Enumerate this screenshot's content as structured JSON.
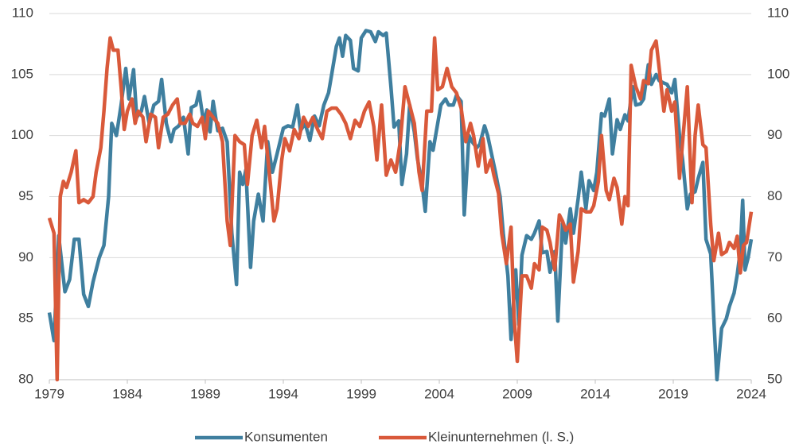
{
  "chart_data": {
    "type": "line",
    "xlim": [
      1979,
      2024
    ],
    "xticks": [
      1979,
      1984,
      1989,
      1994,
      1999,
      2004,
      2009,
      2014,
      2019,
      2024
    ],
    "ylim": [
      80,
      110
    ],
    "yticks": [
      80,
      85,
      90,
      95,
      100,
      105,
      110
    ],
    "y2lim": [
      50,
      110
    ],
    "y2ticks": [
      50,
      60,
      70,
      80,
      90,
      100,
      110
    ],
    "grid": true,
    "legend": "bottom",
    "series": [
      {
        "name": "Konsumenten",
        "color": "#3f7f9f",
        "x": [
          1979.0,
          1979.3,
          1979.6,
          1980.0,
          1980.3,
          1980.6,
          1980.9,
          1981.2,
          1981.5,
          1981.8,
          1982.2,
          1982.5,
          1982.8,
          1983.0,
          1983.3,
          1983.6,
          1983.9,
          1984.1,
          1984.4,
          1984.6,
          1984.9,
          1985.1,
          1985.4,
          1985.7,
          1986.0,
          1986.2,
          1986.5,
          1986.8,
          1987.0,
          1987.3,
          1987.6,
          1987.9,
          1988.1,
          1988.4,
          1988.6,
          1988.9,
          1989.1,
          1989.3,
          1989.5,
          1989.8,
          1990.1,
          1990.4,
          1990.7,
          1991.0,
          1991.2,
          1991.4,
          1991.6,
          1991.9,
          1992.1,
          1992.4,
          1992.7,
          1993.0,
          1993.3,
          1993.6,
          1994.0,
          1994.3,
          1994.6,
          1994.9,
          1995.1,
          1995.4,
          1995.7,
          1996.0,
          1996.3,
          1996.6,
          1996.9,
          1997.1,
          1997.4,
          1997.6,
          1997.8,
          1998.0,
          1998.3,
          1998.5,
          1998.8,
          1999.0,
          1999.3,
          1999.6,
          1999.9,
          2000.1,
          2000.4,
          2000.6,
          2000.9,
          2001.1,
          2001.4,
          2001.6,
          2001.9,
          2002.1,
          2002.4,
          2002.6,
          2002.9,
          2003.1,
          2003.4,
          2003.6,
          2003.9,
          2004.1,
          2004.4,
          2004.6,
          2004.9,
          2005.1,
          2005.4,
          2005.6,
          2005.9,
          2006.1,
          2006.4,
          2006.6,
          2006.9,
          2007.1,
          2007.4,
          2007.6,
          2007.9,
          2008.1,
          2008.4,
          2008.6,
          2008.9,
          2009.1,
          2009.3,
          2009.6,
          2009.9,
          2010.1,
          2010.4,
          2010.6,
          2010.9,
          2011.1,
          2011.4,
          2011.6,
          2011.9,
          2012.1,
          2012.4,
          2012.6,
          2012.9,
          2013.1,
          2013.4,
          2013.6,
          2013.9,
          2014.1,
          2014.4,
          2014.6,
          2014.9,
          2015.1,
          2015.4,
          2015.6,
          2015.9,
          2016.1,
          2016.4,
          2016.6,
          2016.9,
          2017.1,
          2017.4,
          2017.6,
          2017.9,
          2018.1,
          2018.4,
          2018.6,
          2018.9,
          2019.1,
          2019.4,
          2019.6,
          2019.9,
          2020.1,
          2020.4,
          2020.6,
          2020.9,
          2021.1,
          2021.4,
          2021.6,
          2021.8,
          2022.1,
          2022.4,
          2022.6,
          2022.9,
          2023.1,
          2023.3,
          2023.45,
          2023.6,
          2023.8,
          2024.0
        ],
        "values": [
          85.5,
          83.2,
          91.8,
          87.2,
          88.2,
          91.5,
          91.5,
          87.0,
          86.0,
          88.0,
          90.0,
          91.0,
          95.0,
          101.0,
          100.0,
          102.5,
          105.5,
          103,
          105.4,
          101.5,
          102,
          103.2,
          101,
          102.5,
          102.8,
          104.6,
          101,
          99.5,
          100.5,
          100.8,
          101.5,
          98.5,
          102.3,
          102.5,
          103.6,
          101.0,
          102.1,
          100.3,
          102.8,
          100.4,
          100.6,
          99.5,
          92,
          87.8,
          97,
          96,
          97.2,
          89.2,
          93,
          95.2,
          93,
          99.5,
          97,
          98.5,
          100.6,
          100.8,
          100.7,
          102.5,
          100.4,
          101,
          99.6,
          101.6,
          100.8,
          102.5,
          103.5,
          105,
          107.3,
          108,
          106.5,
          108.2,
          107.8,
          105.5,
          105.3,
          108,
          108.6,
          108.5,
          107.7,
          108.5,
          108.2,
          108.4,
          104,
          100.7,
          101.2,
          96,
          98.5,
          102.5,
          100.3,
          98.1,
          96,
          93.8,
          99.5,
          98.8,
          101,
          102.5,
          103,
          102.5,
          102.5,
          103.3,
          102.8,
          93.5,
          100.0,
          99.5,
          99,
          99.3,
          100.8,
          100,
          98.2,
          97,
          95,
          92,
          88.5,
          83.3,
          89,
          84.5,
          90.2,
          91.8,
          91.5,
          92,
          93,
          90.4,
          90.5,
          88.8,
          90.5,
          84.8,
          92.8,
          91.2,
          94,
          92,
          94.8,
          97,
          94,
          96.3,
          95.5,
          97,
          101.8,
          101.6,
          103,
          98.5,
          101.3,
          100.5,
          101.7,
          101.2,
          104,
          102.5,
          102.6,
          103,
          105.8,
          104.2,
          105,
          104.5,
          104.3,
          104.2,
          103.5,
          104.6,
          100,
          98,
          94,
          95.2,
          95.4,
          96.5,
          97.8,
          91.5,
          90.3,
          85,
          80,
          84.2,
          85,
          86,
          87.1,
          88.6,
          90.6,
          94.7,
          89,
          90,
          91.5
        ]
      },
      {
        "name": "Kleinunternehmen (l. S.)",
        "color": "#d9593a",
        "axis": "y2",
        "x": [
          1979.0,
          1979.3,
          1979.5,
          1979.7,
          1979.9,
          1980.1,
          1980.4,
          1980.7,
          1980.9,
          1981.2,
          1981.5,
          1981.8,
          1982.0,
          1982.3,
          1982.5,
          1982.7,
          1982.9,
          1983.1,
          1983.4,
          1983.6,
          1983.8,
          1984.0,
          1984.3,
          1984.5,
          1984.7,
          1985.0,
          1985.2,
          1985.5,
          1985.8,
          1986.0,
          1986.3,
          1986.6,
          1986.9,
          1987.2,
          1987.4,
          1987.7,
          1988.0,
          1988.2,
          1988.5,
          1988.8,
          1989.0,
          1989.2,
          1989.5,
          1989.8,
          1990.1,
          1990.4,
          1990.6,
          1990.9,
          1991.2,
          1991.5,
          1991.7,
          1992.0,
          1992.3,
          1992.6,
          1992.8,
          1993.1,
          1993.4,
          1993.6,
          1993.9,
          1994.1,
          1994.4,
          1994.7,
          1995.0,
          1995.3,
          1995.6,
          1995.9,
          1996.2,
          1996.5,
          1996.8,
          1997.1,
          1997.4,
          1997.7,
          1998.0,
          1998.3,
          1998.6,
          1998.9,
          1999.2,
          1999.5,
          1999.8,
          2000.0,
          2000.3,
          2000.6,
          2000.9,
          2001.2,
          2001.5,
          2001.8,
          2002.1,
          2002.4,
          2002.7,
          2002.9,
          2003.2,
          2003.5,
          2003.7,
          2003.9,
          2004.2,
          2004.5,
          2004.8,
          2005.1,
          2005.4,
          2005.7,
          2006.0,
          2006.2,
          2006.5,
          2006.8,
          2007.0,
          2007.3,
          2007.5,
          2007.8,
          2008.0,
          2008.3,
          2008.6,
          2008.8,
          2009.0,
          2009.3,
          2009.6,
          2009.9,
          2010.1,
          2010.4,
          2010.6,
          2010.9,
          2011.1,
          2011.4,
          2011.7,
          2011.9,
          2012.1,
          2012.4,
          2012.6,
          2012.9,
          2013.1,
          2013.4,
          2013.7,
          2013.9,
          2014.2,
          2014.4,
          2014.7,
          2014.9,
          2015.2,
          2015.4,
          2015.7,
          2015.9,
          2016.1,
          2016.3,
          2016.6,
          2016.9,
          2017.1,
          2017.4,
          2017.6,
          2017.9,
          2018.1,
          2018.4,
          2018.6,
          2018.9,
          2019.1,
          2019.4,
          2019.7,
          2019.9,
          2020.2,
          2020.4,
          2020.6,
          2020.9,
          2021.1,
          2021.4,
          2021.6,
          2021.9,
          2022.1,
          2022.4,
          2022.6,
          2022.9,
          2023.1,
          2023.3,
          2023.5,
          2023.7,
          2024.0
        ],
        "values": [
          76.5,
          74,
          50,
          80,
          82.5,
          81.5,
          84,
          87.5,
          79,
          79.5,
          79,
          80,
          84,
          88,
          94,
          101,
          106,
          104,
          104,
          98,
          91,
          94,
          96,
          92,
          94,
          93,
          89,
          93.5,
          93,
          88,
          93,
          93.5,
          95,
          96,
          92,
          92,
          93.5,
          92,
          91.5,
          93,
          89.5,
          94,
          93,
          92,
          89,
          76,
          72,
          90,
          89,
          88.5,
          82,
          90,
          92.5,
          88,
          91.5,
          84,
          76,
          78,
          86,
          89.5,
          87.5,
          91,
          89.5,
          93,
          91.5,
          93,
          91,
          89.5,
          94,
          94.5,
          94.5,
          93.5,
          92,
          89.5,
          92.5,
          91.5,
          94,
          95.5,
          91.5,
          86,
          95,
          83.5,
          86,
          84,
          89,
          98,
          95,
          92,
          84,
          81,
          94,
          94,
          106,
          97.5,
          98,
          101,
          98,
          97,
          94.5,
          89,
          92,
          90,
          85,
          89.5,
          84,
          86,
          83.5,
          80.5,
          74,
          69,
          75,
          60,
          53,
          67,
          67,
          65,
          69,
          68,
          75,
          74.5,
          72.5,
          68,
          77,
          76,
          74.5,
          75.5,
          66,
          71,
          78,
          77.5,
          77.5,
          78.5,
          82.5,
          90,
          81,
          79.5,
          83,
          81.5,
          75.5,
          80,
          78.5,
          101.5,
          98,
          96,
          99,
          98.5,
          104,
          105.5,
          101,
          94,
          97.5,
          94,
          95.5,
          83,
          92,
          98,
          79,
          90,
          95,
          88.5,
          88,
          75.5,
          69.5,
          74,
          70.5,
          71,
          72.5,
          71.5,
          73.5,
          67.5,
          72,
          72.5,
          77.5
        ]
      }
    ]
  }
}
